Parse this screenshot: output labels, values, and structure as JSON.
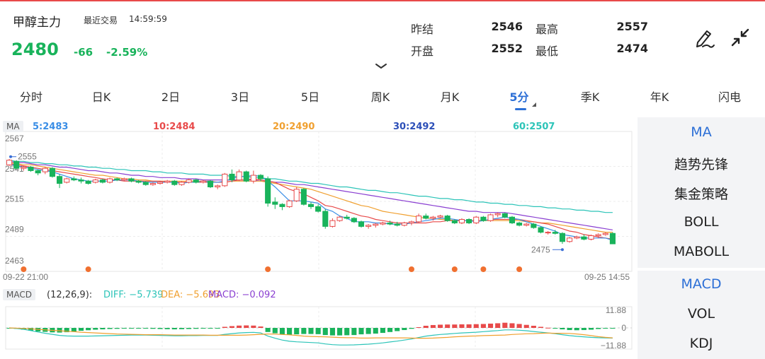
{
  "header": {
    "contract_name": "甲醇主力",
    "trade_status": "最近交易",
    "trade_time": "14:59:59",
    "last_price": "2480",
    "change": "-66",
    "change_pct": "-2.59%",
    "quote": {
      "prev_settle_label": "昨结",
      "prev_settle": "2546",
      "high_label": "最高",
      "high": "2557",
      "open_label": "开盘",
      "open": "2552",
      "low_label": "最低",
      "low": "2474"
    }
  },
  "icons": {
    "pen": "pen-icon",
    "collapse": "collapse-icon",
    "expand": "chevron-down-icon"
  },
  "tabs": [
    "分时",
    "日K",
    "2日",
    "3日",
    "5日",
    "周K",
    "月K",
    "5分",
    "季K",
    "年K",
    "闪电"
  ],
  "active_tab": "5分",
  "ma": {
    "tag": "MA",
    "ma5": "5:2483",
    "ma10": "10:2484",
    "ma20": "20:2490",
    "ma30": "30:2492",
    "ma60": "60:2507"
  },
  "macd": {
    "tag": "MACD",
    "params": "(12,26,9):",
    "diff": "DIFF: −5.739",
    "dea": "DEA: −5.693",
    "macd": "MACD: −0.092"
  },
  "sidebar": {
    "main_indicators": [
      "MA",
      "趋势先锋",
      "集金策略",
      "BOLL",
      "MABOLL"
    ],
    "sub_indicators": [
      "MACD",
      "VOL",
      "KDJ"
    ],
    "active_main": "MA",
    "active_sub": "MACD"
  },
  "colors": {
    "up": "#e84a4a",
    "down": "#19b35b",
    "accent": "#2c6fd6",
    "ma5": "#3a8ee6",
    "ma10": "#e84a4a",
    "ma20": "#f0a030",
    "ma30": "#8a3fd1",
    "ma60": "#2cc4b8",
    "diff": "#2cc4b8",
    "dea": "#f0a030",
    "macd": "#8a3fd1",
    "marker": "#f07030"
  },
  "chart_data": [
    {
      "type": "candlestick",
      "title": "",
      "interval": "5分",
      "y_ticks": [
        2567,
        2541,
        2515,
        2489,
        2463
      ],
      "ylim": [
        2463,
        2567
      ],
      "x_start_label": "09-22 21:00",
      "x_end_label": "09-25 14:55",
      "max_label": "2555",
      "min_label": "2475",
      "grid": true,
      "candles": [
        [
          2548,
          2553,
          2547,
          2552
        ],
        [
          2551,
          2552,
          2544,
          2545
        ],
        [
          2545,
          2547,
          2543,
          2546
        ],
        [
          2546,
          2547,
          2542,
          2543
        ],
        [
          2543,
          2544,
          2539,
          2541
        ],
        [
          2542,
          2546,
          2540,
          2545
        ],
        [
          2545,
          2546,
          2537,
          2538
        ],
        [
          2538,
          2540,
          2528,
          2532
        ],
        [
          2533,
          2537,
          2532,
          2536
        ],
        [
          2536,
          2538,
          2534,
          2535
        ],
        [
          2535,
          2537,
          2532,
          2534
        ],
        [
          2534,
          2535,
          2531,
          2532
        ],
        [
          2533,
          2536,
          2532,
          2535
        ],
        [
          2535,
          2536,
          2532,
          2533
        ],
        [
          2533,
          2537,
          2532,
          2536
        ],
        [
          2536,
          2537,
          2534,
          2535
        ],
        [
          2535,
          2537,
          2534,
          2536
        ],
        [
          2536,
          2537,
          2533,
          2534
        ],
        [
          2534,
          2535,
          2532,
          2533
        ],
        [
          2533,
          2534,
          2530,
          2531
        ],
        [
          2531,
          2533,
          2530,
          2532
        ],
        [
          2532,
          2534,
          2531,
          2533
        ],
        [
          2533,
          2535,
          2532,
          2534
        ],
        [
          2534,
          2535,
          2530,
          2531
        ],
        [
          2531,
          2534,
          2530,
          2533
        ],
        [
          2533,
          2536,
          2532,
          2535
        ],
        [
          2535,
          2536,
          2532,
          2533
        ],
        [
          2533,
          2535,
          2532,
          2534
        ],
        [
          2534,
          2535,
          2528,
          2529
        ],
        [
          2529,
          2531,
          2527,
          2530
        ],
        [
          2530,
          2541,
          2529,
          2540
        ],
        [
          2540,
          2544,
          2533,
          2535
        ],
        [
          2535,
          2544,
          2534,
          2542
        ],
        [
          2542,
          2543,
          2533,
          2534
        ],
        [
          2534,
          2543,
          2532,
          2539
        ],
        [
          2539,
          2540,
          2534,
          2536
        ],
        [
          2536,
          2538,
          2512,
          2515
        ],
        [
          2516,
          2520,
          2510,
          2514
        ],
        [
          2514,
          2515,
          2509,
          2512
        ],
        [
          2512,
          2518,
          2511,
          2517
        ],
        [
          2517,
          2529,
          2516,
          2527
        ],
        [
          2527,
          2528,
          2513,
          2514
        ],
        [
          2514,
          2516,
          2510,
          2512
        ],
        [
          2512,
          2514,
          2507,
          2508
        ],
        [
          2508,
          2510,
          2493,
          2495
        ],
        [
          2495,
          2502,
          2494,
          2500
        ],
        [
          2500,
          2504,
          2499,
          2503
        ],
        [
          2503,
          2505,
          2501,
          2502
        ],
        [
          2502,
          2503,
          2498,
          2499
        ],
        [
          2499,
          2500,
          2494,
          2495
        ],
        [
          2495,
          2497,
          2493,
          2496
        ],
        [
          2496,
          2498,
          2494,
          2497
        ],
        [
          2497,
          2499,
          2496,
          2498
        ],
        [
          2498,
          2500,
          2496,
          2497
        ],
        [
          2497,
          2499,
          2495,
          2496
        ],
        [
          2496,
          2499,
          2495,
          2498
        ],
        [
          2498,
          2500,
          2496,
          2499
        ],
        [
          2499,
          2506,
          2498,
          2504
        ],
        [
          2504,
          2506,
          2501,
          2502
        ],
        [
          2502,
          2504,
          2500,
          2503
        ],
        [
          2503,
          2505,
          2502,
          2504
        ],
        [
          2504,
          2505,
          2499,
          2500
        ],
        [
          2500,
          2501,
          2497,
          2498
        ],
        [
          2498,
          2502,
          2497,
          2501
        ],
        [
          2501,
          2502,
          2497,
          2498
        ],
        [
          2498,
          2504,
          2497,
          2503
        ],
        [
          2503,
          2504,
          2499,
          2500
        ],
        [
          2500,
          2506,
          2499,
          2505
        ],
        [
          2505,
          2507,
          2503,
          2506
        ],
        [
          2506,
          2507,
          2502,
          2503
        ],
        [
          2503,
          2504,
          2497,
          2498
        ],
        [
          2498,
          2499,
          2495,
          2496
        ],
        [
          2496,
          2498,
          2495,
          2497
        ],
        [
          2497,
          2498,
          2493,
          2494
        ],
        [
          2494,
          2495,
          2489,
          2490
        ],
        [
          2490,
          2491,
          2488,
          2490
        ],
        [
          2490,
          2492,
          2488,
          2489
        ],
        [
          2489,
          2490,
          2480,
          2482
        ],
        [
          2482,
          2486,
          2481,
          2485
        ],
        [
          2485,
          2487,
          2484,
          2486
        ],
        [
          2486,
          2488,
          2483,
          2484
        ],
        [
          2484,
          2488,
          2483,
          2487
        ],
        [
          2487,
          2489,
          2485,
          2488
        ],
        [
          2488,
          2490,
          2487,
          2489
        ],
        [
          2489,
          2490,
          2480,
          2480
        ]
      ],
      "ma_lines": {
        "ma5": [
          2549,
          2547,
          2546,
          2545,
          2544,
          2543,
          2542,
          2540,
          2538,
          2536,
          2535,
          2534,
          2534,
          2534,
          2534,
          2535,
          2535,
          2535,
          2534,
          2533,
          2533,
          2533,
          2533,
          2533,
          2532,
          2533,
          2533,
          2534,
          2533,
          2533,
          2534,
          2536,
          2538,
          2538,
          2539,
          2538,
          2534,
          2529,
          2523,
          2517,
          2517,
          2517,
          2516,
          2515,
          2510,
          2508,
          2504,
          2502,
          2499,
          2499,
          2499,
          2498,
          2498,
          2497,
          2497,
          2497,
          2498,
          2499,
          2500,
          2501,
          2502,
          2502,
          2501,
          2500,
          2500,
          2499,
          2500,
          2501,
          2502,
          2503,
          2502,
          2501,
          2499,
          2497,
          2495,
          2493,
          2491,
          2488,
          2487,
          2486,
          2485,
          2485,
          2485,
          2485,
          2483
        ],
        "ma10": [
          2549,
          2548,
          2547,
          2546,
          2545,
          2544,
          2543,
          2542,
          2541,
          2540,
          2539,
          2538,
          2537,
          2536,
          2535,
          2535,
          2534,
          2534,
          2534,
          2534,
          2534,
          2534,
          2533,
          2533,
          2533,
          2533,
          2533,
          2533,
          2533,
          2533,
          2533,
          2534,
          2535,
          2535,
          2536,
          2535,
          2534,
          2533,
          2530,
          2527,
          2525,
          2523,
          2520,
          2517,
          2513,
          2512,
          2510,
          2508,
          2506,
          2504,
          2503,
          2501,
          2500,
          2499,
          2498,
          2498,
          2498,
          2498,
          2498,
          2499,
          2499,
          2500,
          2500,
          2500,
          2500,
          2500,
          2500,
          2501,
          2501,
          2501,
          2501,
          2501,
          2500,
          2499,
          2498,
          2497,
          2495,
          2493,
          2491,
          2490,
          2488,
          2487,
          2486,
          2485,
          2484
        ],
        "ma20": [
          2550,
          2549,
          2548,
          2548,
          2547,
          2546,
          2545,
          2544,
          2543,
          2542,
          2541,
          2540,
          2539,
          2539,
          2538,
          2537,
          2536,
          2536,
          2535,
          2535,
          2534,
          2534,
          2534,
          2534,
          2534,
          2534,
          2534,
          2534,
          2534,
          2533,
          2533,
          2534,
          2534,
          2534,
          2534,
          2534,
          2533,
          2532,
          2531,
          2530,
          2529,
          2528,
          2527,
          2525,
          2523,
          2521,
          2519,
          2517,
          2515,
          2513,
          2512,
          2510,
          2508,
          2507,
          2506,
          2505,
          2504,
          2503,
          2502,
          2502,
          2501,
          2501,
          2500,
          2500,
          2500,
          2500,
          2500,
          2500,
          2500,
          2500,
          2500,
          2500,
          2499,
          2499,
          2498,
          2498,
          2497,
          2496,
          2495,
          2494,
          2493,
          2492,
          2491,
          2490,
          2490
        ],
        "ma30": [
          2551,
          2550,
          2550,
          2549,
          2548,
          2548,
          2547,
          2546,
          2546,
          2545,
          2544,
          2543,
          2543,
          2542,
          2541,
          2541,
          2540,
          2539,
          2539,
          2538,
          2538,
          2537,
          2537,
          2537,
          2536,
          2536,
          2536,
          2535,
          2535,
          2535,
          2535,
          2535,
          2535,
          2535,
          2535,
          2534,
          2534,
          2533,
          2533,
          2532,
          2531,
          2531,
          2530,
          2529,
          2528,
          2527,
          2526,
          2525,
          2524,
          2523,
          2522,
          2521,
          2520,
          2519,
          2518,
          2517,
          2516,
          2515,
          2514,
          2513,
          2512,
          2511,
          2510,
          2509,
          2508,
          2508,
          2507,
          2507,
          2507,
          2507,
          2506,
          2505,
          2504,
          2503,
          2502,
          2501,
          2500,
          2499,
          2498,
          2497,
          2496,
          2495,
          2494,
          2493,
          2492
        ],
        "ma60": [
          2552,
          2551,
          2551,
          2550,
          2550,
          2549,
          2549,
          2548,
          2548,
          2547,
          2547,
          2546,
          2546,
          2545,
          2545,
          2544,
          2544,
          2543,
          2543,
          2543,
          2542,
          2542,
          2541,
          2541,
          2541,
          2540,
          2540,
          2540,
          2539,
          2539,
          2539,
          2538,
          2538,
          2538,
          2537,
          2537,
          2536,
          2536,
          2535,
          2534,
          2534,
          2533,
          2532,
          2532,
          2531,
          2530,
          2529,
          2529,
          2528,
          2527,
          2526,
          2526,
          2525,
          2524,
          2524,
          2523,
          2522,
          2521,
          2521,
          2520,
          2519,
          2519,
          2518,
          2518,
          2517,
          2516,
          2516,
          2515,
          2515,
          2514,
          2514,
          2513,
          2513,
          2512,
          2512,
          2511,
          2511,
          2510,
          2510,
          2509,
          2509,
          2508,
          2508,
          2507,
          2507
        ]
      },
      "event_markers_at_candle": [
        2,
        11,
        36,
        56,
        62,
        66,
        71
      ]
    },
    {
      "type": "bar",
      "title": "",
      "series_label": "MACD",
      "y_ticks": [
        11.88,
        0,
        -11.88
      ],
      "ylim": [
        -11.88,
        11.88
      ],
      "macd_bars": [
        -0.2,
        -0.5,
        -1.0,
        -1.5,
        -2.0,
        -2.2,
        -2.5,
        -2.6,
        -2.4,
        -2.0,
        -1.6,
        -1.3,
        -1.0,
        -0.8,
        -0.6,
        -0.5,
        -0.4,
        -0.4,
        -0.3,
        -0.4,
        -0.5,
        -0.6,
        -0.7,
        -0.8,
        -0.7,
        -0.6,
        -0.5,
        -0.4,
        -0.3,
        -0.3,
        0.6,
        1.0,
        1.3,
        1.4,
        1.3,
        0.8,
        -2.3,
        -3.0,
        -3.6,
        -3.8,
        -3.6,
        -3.4,
        -3.4,
        -3.5,
        -4.0,
        -4.2,
        -4.2,
        -4.1,
        -4.0,
        -3.6,
        -3.4,
        -3.2,
        -2.8,
        -2.3,
        -1.8,
        -1.2,
        -0.5,
        0.4,
        1.2,
        1.6,
        1.8,
        1.9,
        1.9,
        2.0,
        2.0,
        2.1,
        2.2,
        2.4,
        2.6,
        2.9,
        2.6,
        2.2,
        1.7,
        1.2,
        0.6,
        0.1,
        -0.2,
        -0.8,
        -1.2,
        -1.3,
        -1.2,
        -1.0,
        -0.6,
        -0.3,
        -0.1
      ],
      "diff": [
        0.0,
        -0.3,
        -0.8,
        -1.5,
        -2.3,
        -3.0,
        -3.6,
        -4.2,
        -4.5,
        -4.6,
        -4.6,
        -4.6,
        -4.5,
        -4.4,
        -4.3,
        -4.2,
        -4.1,
        -4.0,
        -4.0,
        -4.0,
        -4.1,
        -4.2,
        -4.3,
        -4.4,
        -4.4,
        -4.3,
        -4.3,
        -4.2,
        -4.2,
        -4.2,
        -3.6,
        -3.2,
        -2.8,
        -2.6,
        -2.5,
        -2.8,
        -4.6,
        -5.8,
        -6.8,
        -7.5,
        -7.8,
        -8.0,
        -8.2,
        -8.4,
        -9.0,
        -9.4,
        -9.6,
        -9.6,
        -9.5,
        -9.3,
        -9.1,
        -8.8,
        -8.4,
        -7.9,
        -7.4,
        -6.8,
        -6.2,
        -5.4,
        -4.6,
        -4.1,
        -3.7,
        -3.4,
        -3.1,
        -2.8,
        -2.6,
        -2.4,
        -2.1,
        -1.8,
        -1.5,
        -1.1,
        -1.1,
        -1.3,
        -1.6,
        -2.0,
        -2.4,
        -2.8,
        -3.2,
        -3.8,
        -4.3,
        -4.7,
        -5.0,
        -5.3,
        -5.5,
        -5.6,
        -5.7
      ],
      "dea": [
        0.0,
        -0.1,
        -0.3,
        -0.5,
        -0.8,
        -1.1,
        -1.4,
        -1.6,
        -1.9,
        -2.1,
        -2.4,
        -2.6,
        -2.8,
        -3.0,
        -3.2,
        -3.4,
        -3.5,
        -3.6,
        -3.7,
        -3.8,
        -3.8,
        -3.8,
        -3.9,
        -4.0,
        -4.0,
        -4.0,
        -4.0,
        -4.0,
        -4.1,
        -4.1,
        -4.1,
        -4.1,
        -4.1,
        -4.0,
        -3.8,
        -3.6,
        -3.4,
        -3.5,
        -3.7,
        -3.9,
        -4.2,
        -4.6,
        -4.8,
        -4.9,
        -5.0,
        -5.2,
        -5.4,
        -5.5,
        -5.5,
        -5.7,
        -5.7,
        -5.6,
        -5.6,
        -5.6,
        -5.6,
        -5.6,
        -5.7,
        -5.8,
        -5.8,
        -5.7,
        -5.5,
        -5.3,
        -5.0,
        -4.8,
        -4.6,
        -4.5,
        -4.3,
        -4.2,
        -4.1,
        -4.0,
        -3.7,
        -3.5,
        -3.3,
        -3.2,
        -3.0,
        -2.9,
        -3.0,
        -3.0,
        -3.1,
        -3.4,
        -3.8,
        -4.3,
        -4.9,
        -5.3,
        -5.6
      ]
    }
  ]
}
